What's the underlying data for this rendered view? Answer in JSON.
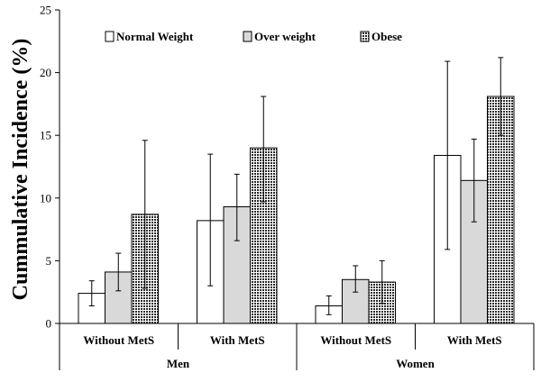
{
  "chart_data": {
    "type": "bar",
    "title": "",
    "xlabel": "",
    "ylabel": "Cummulative Incidence (%)",
    "ylim": [
      0,
      25
    ],
    "yticks": [
      0,
      5,
      10,
      15,
      20,
      25
    ],
    "grid": false,
    "legend_position": "top",
    "groups": [
      {
        "label": "Men",
        "categories": [
          "Without MetS",
          "With MetS"
        ]
      },
      {
        "label": "Women",
        "categories": [
          "Without MetS",
          "With MetS"
        ]
      }
    ],
    "categories": [
      "Without MetS",
      "With MetS",
      "Without MetS",
      "With MetS"
    ],
    "series": [
      {
        "name": "Normal Weight",
        "fill": "#ffffff",
        "pattern": "solid",
        "values": [
          2.4,
          8.2,
          1.4,
          13.4
        ],
        "error_low": [
          1.4,
          3.0,
          0.7,
          5.9
        ],
        "error_high": [
          3.4,
          13.5,
          2.2,
          20.9
        ]
      },
      {
        "name": "Over weight",
        "fill": "#d9d9d9",
        "pattern": "solid",
        "values": [
          4.1,
          9.3,
          3.5,
          11.4
        ],
        "error_low": [
          2.6,
          6.6,
          2.5,
          8.1
        ],
        "error_high": [
          5.6,
          11.9,
          4.6,
          14.7
        ]
      },
      {
        "name": "Obese",
        "fill": "#404040",
        "pattern": "checker",
        "values": [
          8.7,
          14.0,
          3.3,
          18.1
        ],
        "error_low": [
          2.8,
          9.7,
          1.6,
          15.0
        ],
        "error_high": [
          14.6,
          18.1,
          5.0,
          21.2
        ]
      }
    ]
  }
}
